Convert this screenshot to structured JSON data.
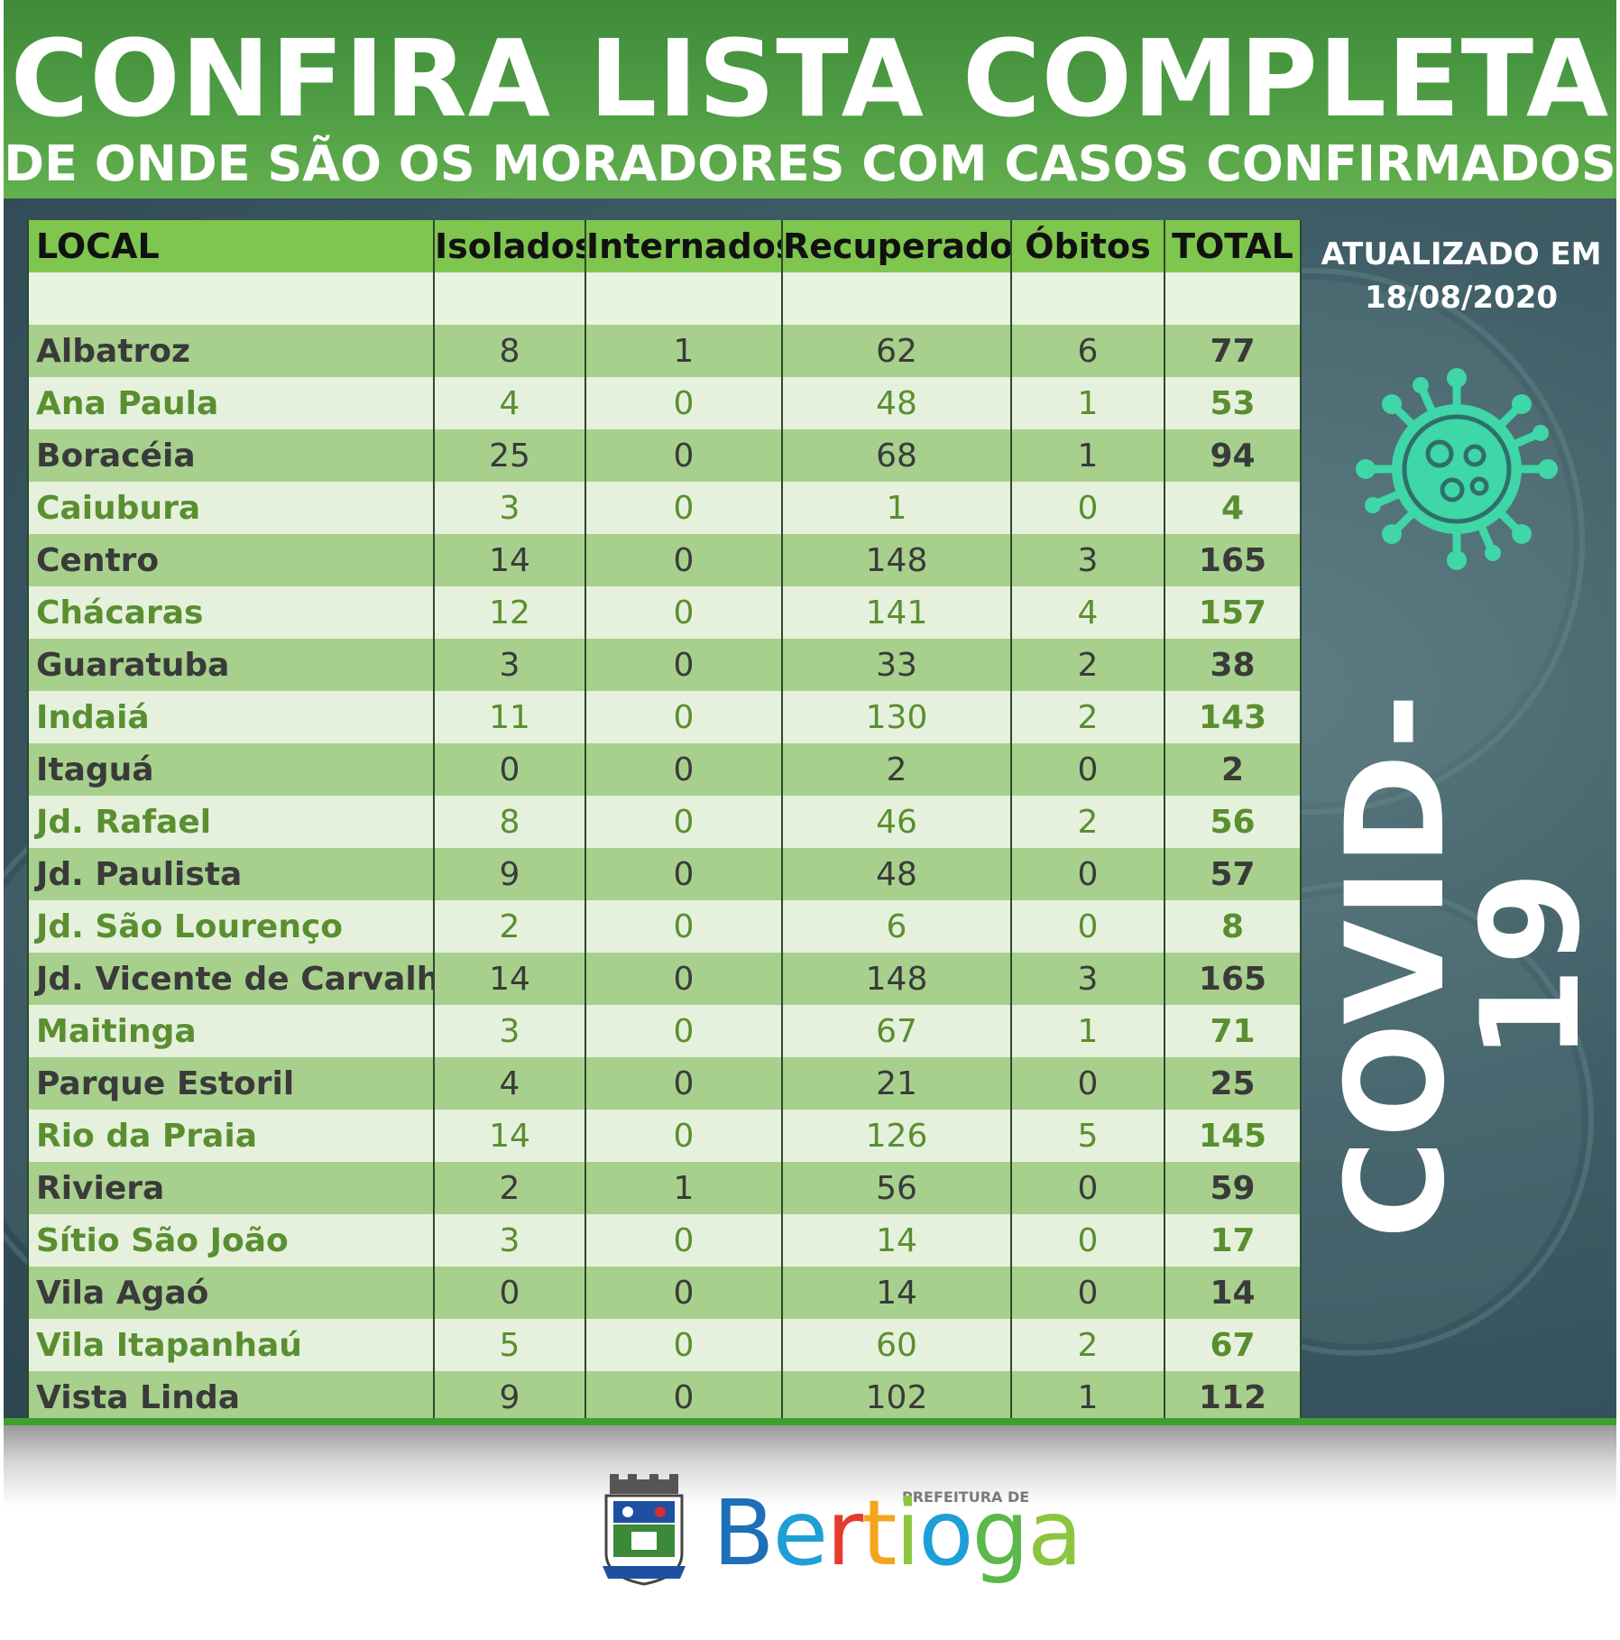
{
  "header": {
    "title": "CONFIRA LISTA COMPLETA",
    "subtitle": "DE ONDE SÃO OS MORADORES COM CASOS CONFIRMADOS"
  },
  "table": {
    "columns": [
      "LOCAL",
      "Isolados",
      "Internados",
      "Recuperados",
      "Óbitos",
      "TOTAL"
    ],
    "rows": [
      [
        "Albatroz",
        "8",
        "1",
        "62",
        "6",
        "77"
      ],
      [
        "Ana Paula",
        "4",
        "0",
        "48",
        "1",
        "53"
      ],
      [
        "Boracéia",
        "25",
        "0",
        "68",
        "1",
        "94"
      ],
      [
        "Caiubura",
        "3",
        "0",
        "1",
        "0",
        "4"
      ],
      [
        "Centro",
        "14",
        "0",
        "148",
        "3",
        "165"
      ],
      [
        "Chácaras",
        "12",
        "0",
        "141",
        "4",
        "157"
      ],
      [
        "Guaratuba",
        "3",
        "0",
        "33",
        "2",
        "38"
      ],
      [
        "Indaiá",
        "11",
        "0",
        "130",
        "2",
        "143"
      ],
      [
        "Itaguá",
        "0",
        "0",
        "2",
        "0",
        "2"
      ],
      [
        "Jd. Rafael",
        "8",
        "0",
        "46",
        "2",
        "56"
      ],
      [
        "Jd. Paulista",
        "9",
        "0",
        "48",
        "0",
        "57"
      ],
      [
        "Jd. São Lourenço",
        "2",
        "0",
        "6",
        "0",
        "8"
      ],
      [
        "Jd. Vicente de Carvalho",
        "14",
        "0",
        "148",
        "3",
        "165"
      ],
      [
        "Maitinga",
        "3",
        "0",
        "67",
        "1",
        "71"
      ],
      [
        "Parque Estoril",
        "4",
        "0",
        "21",
        "0",
        "25"
      ],
      [
        "Rio da Praia",
        "14",
        "0",
        "126",
        "5",
        "145"
      ],
      [
        "Riviera",
        "2",
        "1",
        "56",
        "0",
        "59"
      ],
      [
        "Sítio São João",
        "3",
        "0",
        "14",
        "0",
        "17"
      ],
      [
        "Vila Agaó",
        "0",
        "0",
        "14",
        "0",
        "14"
      ],
      [
        "Vila Itapanhaú",
        "5",
        "0",
        "60",
        "2",
        "67"
      ],
      [
        "Vista Linda",
        "9",
        "0",
        "102",
        "1",
        "112"
      ]
    ]
  },
  "side": {
    "updated_line1": "ATUALIZADO EM",
    "updated_line2": "18/08/2020",
    "covid_label": "COVID-19"
  },
  "footer": {
    "prefeitura_label": "PREFEITURA DE",
    "brand": [
      "B",
      "e",
      "r",
      "t",
      "i",
      "o",
      "g",
      "a"
    ],
    "brand_colors": [
      "#1e6fb8",
      "#1e9fd6",
      "#e33b2e",
      "#f4a51c",
      "#8cc63f",
      "#1e9fd6",
      "#5bb84a",
      "#8cc63f"
    ]
  },
  "colors": {
    "header_green": "#4f9e44",
    "table_header": "#7fc64f",
    "row_dark": "#a8d08d",
    "row_light": "#e6f1dd",
    "virus_icon": "#3fd6a8"
  }
}
